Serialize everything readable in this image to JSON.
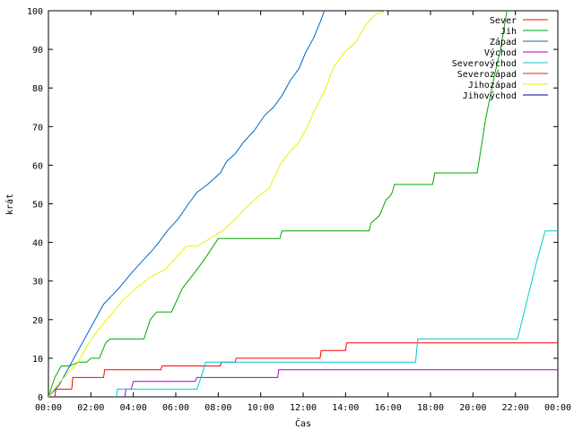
{
  "chart_data": {
    "type": "line",
    "xlabel": "Čas",
    "ylabel": "krát",
    "xlim": [
      0,
      24
    ],
    "ylim": [
      0,
      100
    ],
    "x_ticks": [
      {
        "value": 0,
        "label": "00:00"
      },
      {
        "value": 2,
        "label": "02:00"
      },
      {
        "value": 4,
        "label": "04:00"
      },
      {
        "value": 6,
        "label": "06:00"
      },
      {
        "value": 8,
        "label": "08:00"
      },
      {
        "value": 10,
        "label": "10:00"
      },
      {
        "value": 12,
        "label": "12:00"
      },
      {
        "value": 14,
        "label": "14:00"
      },
      {
        "value": 16,
        "label": "16:00"
      },
      {
        "value": 18,
        "label": "18:00"
      },
      {
        "value": 20,
        "label": "20:00"
      },
      {
        "value": 22,
        "label": "22:00"
      },
      {
        "value": 24,
        "label": "00:00"
      }
    ],
    "y_ticks": [
      0,
      10,
      20,
      30,
      40,
      50,
      60,
      70,
      80,
      90,
      100
    ],
    "grid": false,
    "legend_position": "top-right",
    "x_unit": "hours since 00:00",
    "series": [
      {
        "name": "Sever",
        "color": "#ff0000",
        "points": [
          [
            0.3,
            0
          ],
          [
            0.35,
            2
          ],
          [
            1.1,
            2
          ],
          [
            1.15,
            5
          ],
          [
            2.6,
            5
          ],
          [
            2.65,
            7
          ],
          [
            5.3,
            7
          ],
          [
            5.35,
            8
          ],
          [
            8.1,
            8
          ],
          [
            8.15,
            9
          ],
          [
            8.8,
            9
          ],
          [
            8.85,
            10
          ],
          [
            12.8,
            10
          ],
          [
            12.85,
            12
          ],
          [
            14.0,
            12
          ],
          [
            14.05,
            14
          ],
          [
            24,
            14
          ]
        ]
      },
      {
        "name": "Jih",
        "color": "#00aa00",
        "points": [
          [
            0,
            0
          ],
          [
            0.3,
            5
          ],
          [
            0.6,
            8
          ],
          [
            1.0,
            8
          ],
          [
            1.4,
            9
          ],
          [
            1.8,
            9
          ],
          [
            2.0,
            10
          ],
          [
            2.4,
            10
          ],
          [
            2.7,
            14
          ],
          [
            2.9,
            15
          ],
          [
            4.5,
            15
          ],
          [
            4.8,
            20
          ],
          [
            5.1,
            22
          ],
          [
            5.8,
            22
          ],
          [
            6.3,
            28
          ],
          [
            7.0,
            33
          ],
          [
            7.4,
            36
          ],
          [
            8.0,
            41
          ],
          [
            10.9,
            41
          ],
          [
            11.0,
            43
          ],
          [
            15.1,
            43
          ],
          [
            15.2,
            45
          ],
          [
            15.6,
            47
          ],
          [
            15.9,
            51
          ],
          [
            16.1,
            52
          ],
          [
            16.2,
            53
          ],
          [
            16.3,
            55
          ],
          [
            18.1,
            55
          ],
          [
            18.2,
            58
          ],
          [
            20.2,
            58
          ],
          [
            20.6,
            72
          ],
          [
            21.0,
            83
          ],
          [
            21.3,
            90
          ],
          [
            21.6,
            100
          ]
        ]
      },
      {
        "name": "Západ",
        "color": "#0066cc",
        "points": [
          [
            0,
            0
          ],
          [
            0.5,
            3
          ],
          [
            1.0,
            8
          ],
          [
            1.4,
            12
          ],
          [
            1.8,
            16
          ],
          [
            2.2,
            20
          ],
          [
            2.6,
            24
          ],
          [
            3.3,
            28
          ],
          [
            3.9,
            32
          ],
          [
            4.4,
            35
          ],
          [
            4.9,
            38
          ],
          [
            5.2,
            40
          ],
          [
            5.6,
            43
          ],
          [
            6.1,
            46
          ],
          [
            6.6,
            50
          ],
          [
            7.0,
            53
          ],
          [
            7.5,
            55
          ],
          [
            8.1,
            58
          ],
          [
            8.4,
            61
          ],
          [
            8.8,
            63
          ],
          [
            9.2,
            66
          ],
          [
            9.7,
            69
          ],
          [
            10.2,
            73
          ],
          [
            10.6,
            75
          ],
          [
            11.0,
            78
          ],
          [
            11.4,
            82
          ],
          [
            11.8,
            85
          ],
          [
            12.1,
            89
          ],
          [
            12.5,
            93
          ],
          [
            12.8,
            97
          ],
          [
            13.0,
            100
          ]
        ]
      },
      {
        "name": "Východ",
        "color": "#aa00cc",
        "points": [
          [
            3.6,
            0
          ],
          [
            3.65,
            2
          ],
          [
            3.9,
            2
          ],
          [
            4.0,
            4
          ],
          [
            6.9,
            4
          ],
          [
            7.0,
            5
          ],
          [
            10.8,
            5
          ],
          [
            10.85,
            7
          ],
          [
            24,
            7
          ]
        ]
      },
      {
        "name": "Severovýchod",
        "color": "#00cccc",
        "points": [
          [
            3.2,
            0
          ],
          [
            3.25,
            2
          ],
          [
            7.0,
            2
          ],
          [
            7.3,
            7
          ],
          [
            7.4,
            9
          ],
          [
            17.3,
            9
          ],
          [
            17.4,
            15
          ],
          [
            22.1,
            15
          ],
          [
            23.0,
            35
          ],
          [
            23.4,
            43
          ],
          [
            24,
            43
          ]
        ]
      },
      {
        "name": "Severozápad",
        "color": "#cc3300",
        "points": []
      },
      {
        "name": "Jihozápad",
        "color": "#eeee00",
        "points": [
          [
            0,
            0
          ],
          [
            0.4,
            3
          ],
          [
            0.9,
            6
          ],
          [
            1.4,
            9
          ],
          [
            1.8,
            13
          ],
          [
            2.3,
            17
          ],
          [
            2.9,
            21
          ],
          [
            3.5,
            25
          ],
          [
            4.1,
            28
          ],
          [
            4.8,
            31
          ],
          [
            5.5,
            33
          ],
          [
            6.0,
            36
          ],
          [
            6.5,
            39
          ],
          [
            7.0,
            39
          ],
          [
            7.6,
            41
          ],
          [
            8.2,
            43
          ],
          [
            8.8,
            46
          ],
          [
            9.3,
            49
          ],
          [
            9.9,
            52
          ],
          [
            10.4,
            54
          ],
          [
            10.9,
            60
          ],
          [
            11.3,
            63
          ],
          [
            11.8,
            66
          ],
          [
            12.2,
            70
          ],
          [
            12.6,
            75
          ],
          [
            13.0,
            79
          ],
          [
            13.4,
            85
          ],
          [
            13.9,
            89
          ],
          [
            14.5,
            92
          ],
          [
            14.9,
            96
          ],
          [
            15.4,
            99
          ],
          [
            15.9,
            100
          ]
        ]
      },
      {
        "name": "Jihovýchod",
        "color": "#000099",
        "points": []
      }
    ]
  }
}
